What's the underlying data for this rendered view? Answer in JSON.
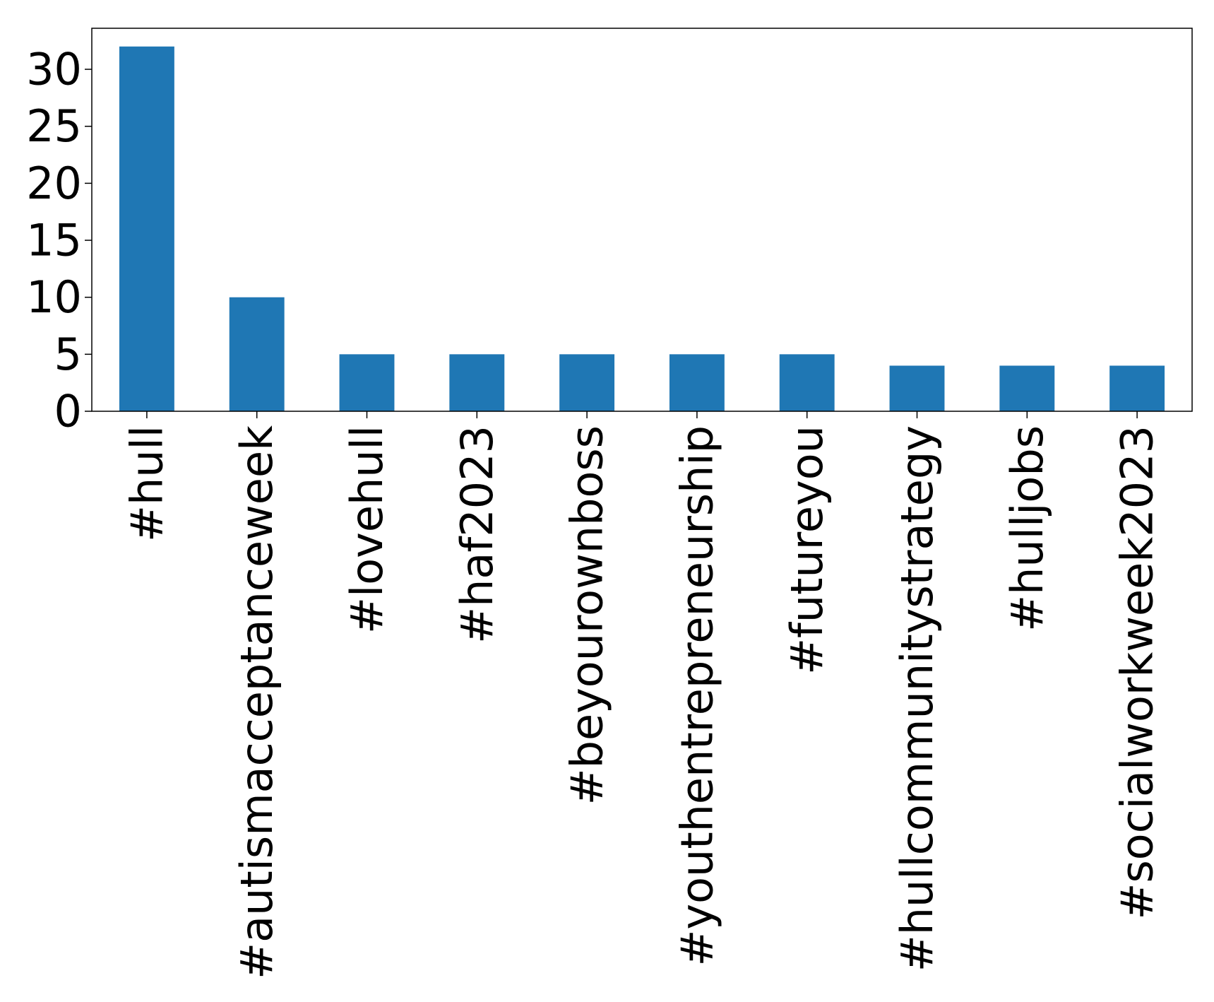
{
  "chart_data": {
    "type": "bar",
    "categories": [
      "#hull",
      "#autismacceptanceweek",
      "#lovehull",
      "#haf2023",
      "#beyourownboss",
      "#youthentrepreneurship",
      "#futureyou",
      "#hullcommunitystrategy",
      "#hulljobs",
      "#socialworkweek2023"
    ],
    "values": [
      32,
      10,
      5,
      5,
      5,
      5,
      5,
      4,
      4,
      4
    ],
    "title": "",
    "xlabel": "",
    "ylabel": "",
    "ylim": [
      0,
      33.6
    ],
    "yticks": [
      0,
      5,
      10,
      15,
      20,
      25,
      30
    ],
    "bar_color": "#1f77b4",
    "grid": false,
    "legend": "none"
  }
}
